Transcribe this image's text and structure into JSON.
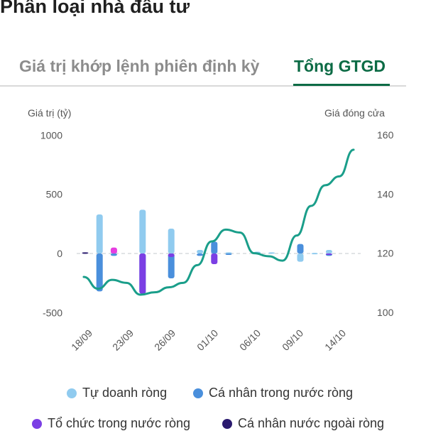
{
  "header": {
    "title": "Phân loại nhà đầu tư"
  },
  "tabs": [
    {
      "label": "Giá trị khớp lệnh phiên định kỳ",
      "active": false
    },
    {
      "label": "Tổng GTGD",
      "active": true
    }
  ],
  "colors": {
    "accent": "#0c6b45",
    "line": "#1a9e8a",
    "tu_doanh": "#90cbef",
    "ca_nhan_trong_nuoc": "#4a8fdc",
    "to_chuc_trong_nuoc": "#7b3fe4",
    "ca_nhan_nuoc_ngoai": "#2a1a6e",
    "magenta": "#e63de0"
  },
  "chart_data": {
    "type": "bar",
    "left_axis_label": "Giá trị (tỷ)",
    "right_axis_label": "Giá đóng cửa",
    "y_left_ticks": [
      "1000",
      "500",
      "0",
      "-500"
    ],
    "y_left_range": [
      -500,
      1000
    ],
    "y_right_ticks": [
      "160",
      "140",
      "120",
      "100"
    ],
    "y_right_range": [
      100,
      160
    ],
    "x_tick_labels": [
      "18/09",
      "23/09",
      "26/09",
      "01/10",
      "06/10",
      "09/10",
      "14/10"
    ],
    "bars": [
      {
        "date": "17/09",
        "tu_doanh": 0,
        "ca_nhan_trong_nuoc": 0,
        "to_chuc_trong_nuoc": 0,
        "ca_nhan_nuoc_ngoai": 10
      },
      {
        "date": "18/09",
        "tu_doanh": 330,
        "ca_nhan_trong_nuoc": -320,
        "to_chuc_trong_nuoc": 0,
        "ca_nhan_nuoc_ngoai": 0
      },
      {
        "date": "19/09",
        "tu_doanh": 20,
        "ca_nhan_trong_nuoc": -20,
        "to_chuc_trong_nuoc": 0,
        "ca_nhan_nuoc_ngoai": 0,
        "other": 50
      },
      {
        "date": "23/09",
        "tu_doanh": 370,
        "ca_nhan_trong_nuoc": -340,
        "to_chuc_trong_nuoc": -340,
        "ca_nhan_nuoc_ngoai": 0
      },
      {
        "date": "26/09",
        "tu_doanh": 210,
        "ca_nhan_trong_nuoc": -210,
        "to_chuc_trong_nuoc": -30,
        "ca_nhan_nuoc_ngoai": 0
      },
      {
        "date": "30/09",
        "tu_doanh": 30,
        "ca_nhan_trong_nuoc": -20,
        "to_chuc_trong_nuoc": 0,
        "ca_nhan_nuoc_ngoai": 0
      },
      {
        "date": "01/10",
        "tu_doanh": 20,
        "ca_nhan_trong_nuoc": 100,
        "to_chuc_trong_nuoc": -90,
        "ca_nhan_nuoc_ngoai": 0
      },
      {
        "date": "02/10",
        "tu_doanh": 10,
        "ca_nhan_trong_nuoc": -5,
        "to_chuc_trong_nuoc": 0,
        "ca_nhan_nuoc_ngoai": 0
      },
      {
        "date": "06/10",
        "tu_doanh": 15,
        "ca_nhan_trong_nuoc": 0,
        "to_chuc_trong_nuoc": 0,
        "ca_nhan_nuoc_ngoai": 0
      },
      {
        "date": "07/10",
        "tu_doanh": 10,
        "ca_nhan_trong_nuoc": 0,
        "to_chuc_trong_nuoc": 0,
        "ca_nhan_nuoc_ngoai": 0
      },
      {
        "date": "09/10",
        "tu_doanh": -70,
        "ca_nhan_trong_nuoc": 80,
        "to_chuc_trong_nuoc": 0,
        "ca_nhan_nuoc_ngoai": 0
      },
      {
        "date": "10/10",
        "tu_doanh": 5,
        "ca_nhan_trong_nuoc": 0,
        "to_chuc_trong_nuoc": 0,
        "ca_nhan_nuoc_ngoai": 0
      },
      {
        "date": "13/10",
        "tu_doanh": 30,
        "ca_nhan_trong_nuoc": -20,
        "to_chuc_trong_nuoc": -10,
        "ca_nhan_nuoc_ngoai": 0
      }
    ],
    "closing_price": [
      {
        "date": "17/09",
        "value": 112
      },
      {
        "date": "18/09",
        "value": 108
      },
      {
        "date": "19/09",
        "value": 111
      },
      {
        "date": "22/09",
        "value": 110
      },
      {
        "date": "23/09",
        "value": 106
      },
      {
        "date": "24/09",
        "value": 106.8
      },
      {
        "date": "25/09",
        "value": 108.5
      },
      {
        "date": "26/09",
        "value": 110
      },
      {
        "date": "29/09",
        "value": 116
      },
      {
        "date": "30/09",
        "value": 124
      },
      {
        "date": "01/10",
        "value": 128
      },
      {
        "date": "02/10",
        "value": 127
      },
      {
        "date": "03/10",
        "value": 120
      },
      {
        "date": "06/10",
        "value": 119
      },
      {
        "date": "07/10",
        "value": 117.5
      },
      {
        "date": "08/10",
        "value": 126
      },
      {
        "date": "09/10",
        "value": 136
      },
      {
        "date": "10/10",
        "value": 143
      },
      {
        "date": "13/10",
        "value": 146
      },
      {
        "date": "14/10",
        "value": 155
      }
    ],
    "legend": [
      {
        "key": "tu_doanh",
        "label": "Tự doanh ròng"
      },
      {
        "key": "ca_nhan_trong_nuoc",
        "label": "Cá nhân trong nước ròng"
      },
      {
        "key": "to_chuc_trong_nuoc",
        "label": "Tổ chức trong nước ròng"
      },
      {
        "key": "ca_nhan_nuoc_ngoai",
        "label": "Cá nhân nước ngoài ròng"
      }
    ]
  }
}
